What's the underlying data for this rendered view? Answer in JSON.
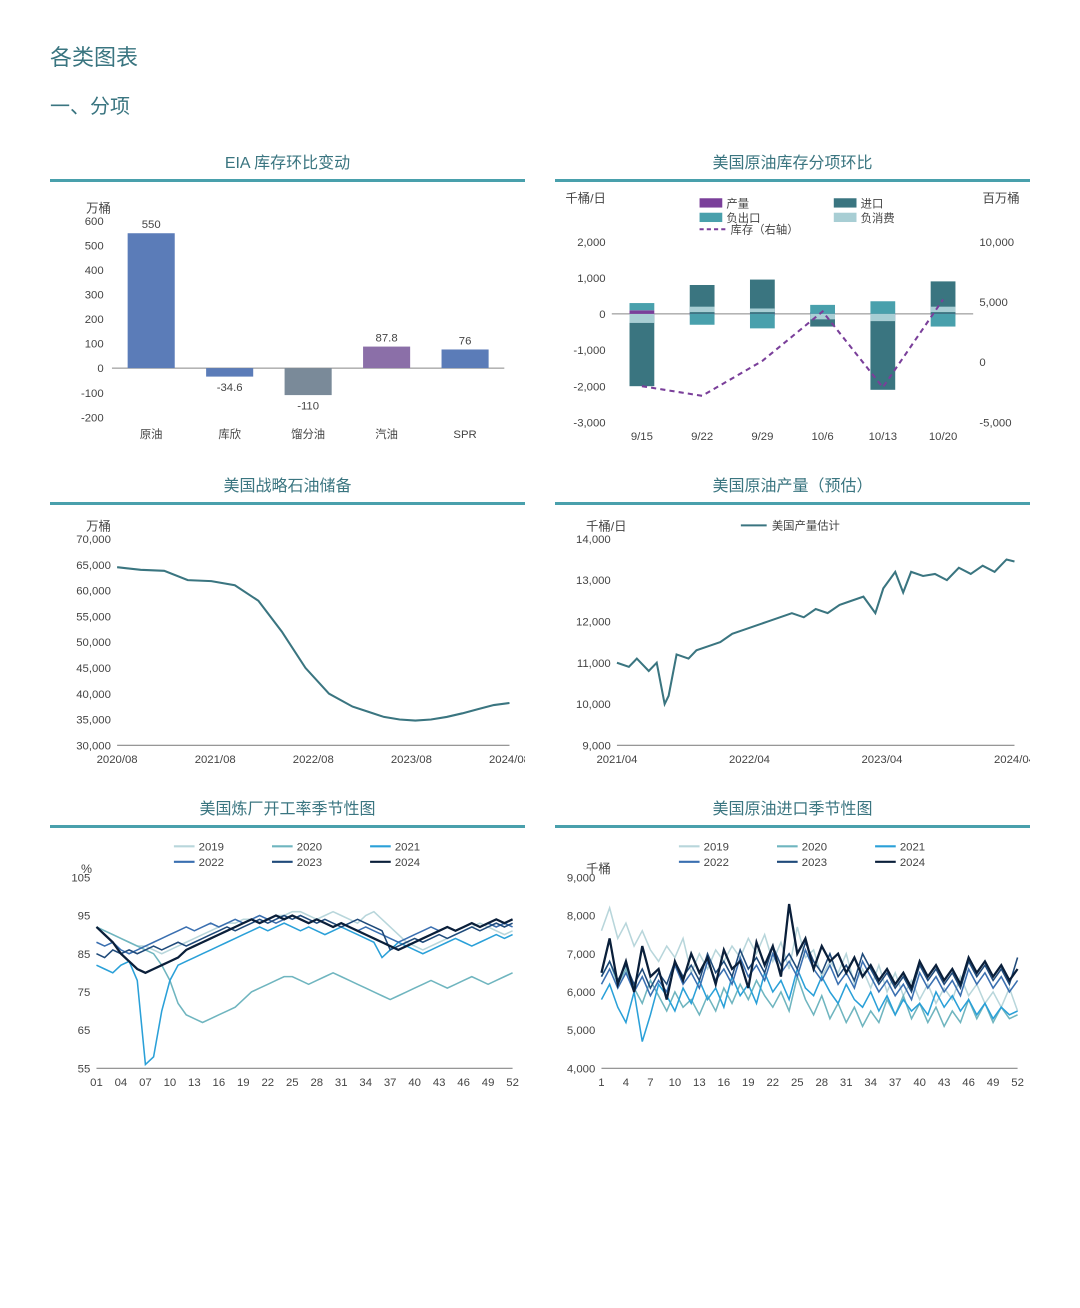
{
  "page": {
    "main_title": "各类图表",
    "section_title": "一、分项"
  },
  "palette": {
    "teal": "#49a0ac",
    "teal_dark": "#3a7580",
    "teal_light": "#8fc6ce",
    "bar_blue": "#5b7cb8",
    "bar_gray": "#7a8a99",
    "bar_purple": "#8b6fa8",
    "purple": "#7a3f9a",
    "grid": "#d0d0d0",
    "axis": "#666666",
    "s2019": "#b8d6db",
    "s2020": "#6fb5bf",
    "s2021": "#2aa0d8",
    "s2022": "#3a6fb0",
    "s2023": "#1f4a7a",
    "s2024": "#0a1f3a",
    "leg_c1": "#7a3f9a",
    "leg_c2": "#3a7580",
    "leg_c3": "#49a0ac",
    "leg_c4": "#a8ced4"
  },
  "chart1": {
    "title": "EIA 库存环比变动",
    "type": "bar",
    "y_unit": "万桶",
    "categories": [
      "原油",
      "库欣",
      "馏分油",
      "汽油",
      "SPR"
    ],
    "values": [
      550,
      -34.6,
      -110,
      87.8,
      76
    ],
    "colors": [
      "#5b7cb8",
      "#5b7cb8",
      "#7a8a99",
      "#8b6fa8",
      "#5b7cb8"
    ],
    "labels": [
      "550",
      "-34.6",
      "-110",
      "87.8",
      "76"
    ],
    "ylim": [
      -200,
      600
    ],
    "ytick": 100
  },
  "chart2": {
    "title": "美国原油库存分项环比",
    "type": "stacked_bar_line",
    "left_unit": "千桶/日",
    "right_unit": "百万桶",
    "legend": [
      "产量",
      "进口",
      "负出口",
      "负消费",
      "库存（右轴）"
    ],
    "x": [
      "9/15",
      "9/22",
      "9/29",
      "10/6",
      "10/13",
      "10/20"
    ],
    "left_ylim": [
      -3000,
      2000
    ],
    "left_tick": 1000,
    "right_ylim": [
      -5000,
      10000
    ],
    "right_tick": 5000,
    "stacks": [
      {
        "p": [
          -100,
          100
        ],
        "i": [
          -2000,
          -100
        ],
        "e": [
          100,
          300
        ],
        "c": [
          -250,
          0
        ]
      },
      {
        "p": [
          -50,
          50
        ],
        "i": [
          0,
          800
        ],
        "e": [
          -300,
          0
        ],
        "c": [
          50,
          200
        ]
      },
      {
        "p": [
          -50,
          50
        ],
        "i": [
          0,
          950
        ],
        "e": [
          -400,
          0
        ],
        "c": [
          50,
          150
        ]
      },
      {
        "p": [
          -50,
          50
        ],
        "i": [
          -350,
          0
        ],
        "e": [
          0,
          250
        ],
        "c": [
          -150,
          0
        ]
      },
      {
        "p": [
          -100,
          0
        ],
        "i": [
          -2100,
          -100
        ],
        "e": [
          0,
          350
        ],
        "c": [
          -200,
          0
        ]
      },
      {
        "p": [
          -50,
          50
        ],
        "i": [
          0,
          900
        ],
        "e": [
          -350,
          0
        ],
        "c": [
          50,
          200
        ]
      }
    ],
    "inventory_line": [
      -2000,
      -2800,
      100,
      4200,
      -2100,
      5200
    ]
  },
  "chart3": {
    "title": "美国战略石油储备",
    "type": "line",
    "y_unit": "万桶",
    "x": [
      "2020/08",
      "2021/08",
      "2022/08",
      "2023/08",
      "2024/08"
    ],
    "ylim": [
      30000,
      70000
    ],
    "ytick": 5000,
    "series": [
      [
        0,
        64500
      ],
      [
        6,
        64000
      ],
      [
        12,
        63800
      ],
      [
        18,
        62000
      ],
      [
        24,
        61800
      ],
      [
        30,
        61000
      ],
      [
        36,
        58000
      ],
      [
        42,
        52000
      ],
      [
        48,
        45000
      ],
      [
        54,
        40000
      ],
      [
        60,
        37500
      ],
      [
        64,
        36500
      ],
      [
        68,
        35500
      ],
      [
        72,
        35000
      ],
      [
        76,
        34800
      ],
      [
        80,
        35000
      ],
      [
        84,
        35500
      ],
      [
        88,
        36200
      ],
      [
        92,
        37000
      ],
      [
        96,
        37800
      ],
      [
        100,
        38200
      ]
    ]
  },
  "chart4": {
    "title": "美国原油产量（预估）",
    "type": "line",
    "y_unit": "千桶/日",
    "legend": "美国产量估计",
    "x": [
      "2021/04",
      "2022/04",
      "2023/04",
      "2024/04"
    ],
    "ylim": [
      9000,
      14000
    ],
    "ytick": 1000,
    "series": [
      [
        0,
        11000
      ],
      [
        3,
        10900
      ],
      [
        5,
        11100
      ],
      [
        8,
        10800
      ],
      [
        10,
        11000
      ],
      [
        12,
        10000
      ],
      [
        13,
        10200
      ],
      [
        15,
        11200
      ],
      [
        18,
        11100
      ],
      [
        20,
        11300
      ],
      [
        23,
        11400
      ],
      [
        26,
        11500
      ],
      [
        29,
        11700
      ],
      [
        32,
        11800
      ],
      [
        35,
        11900
      ],
      [
        38,
        12000
      ],
      [
        41,
        12100
      ],
      [
        44,
        12200
      ],
      [
        47,
        12100
      ],
      [
        50,
        12300
      ],
      [
        53,
        12200
      ],
      [
        56,
        12400
      ],
      [
        59,
        12500
      ],
      [
        62,
        12600
      ],
      [
        65,
        12200
      ],
      [
        67,
        12800
      ],
      [
        70,
        13200
      ],
      [
        72,
        12700
      ],
      [
        74,
        13200
      ],
      [
        77,
        13100
      ],
      [
        80,
        13150
      ],
      [
        83,
        13000
      ],
      [
        86,
        13300
      ],
      [
        89,
        13150
      ],
      [
        92,
        13350
      ],
      [
        95,
        13200
      ],
      [
        98,
        13500
      ],
      [
        100,
        13450
      ]
    ]
  },
  "chart5": {
    "title": "美国炼厂开工率季节性图",
    "type": "seasonal",
    "y_unit": "%",
    "ylim": [
      55,
      105
    ],
    "ytick": 10,
    "x_ticks": [
      "01",
      "04",
      "07",
      "10",
      "13",
      "16",
      "19",
      "22",
      "25",
      "28",
      "31",
      "34",
      "37",
      "40",
      "43",
      "46",
      "49",
      "52"
    ],
    "years": [
      "2019",
      "2020",
      "2021",
      "2022",
      "2023",
      "2024"
    ],
    "colors": [
      "#b8d6db",
      "#6fb5bf",
      "#2aa0d8",
      "#3a6fb0",
      "#1f4a7a",
      "#0a1f3a"
    ],
    "data": {
      "2019": [
        92,
        91,
        90,
        89,
        88,
        87,
        87,
        86,
        85,
        86,
        87,
        88,
        89,
        90,
        91,
        92,
        93,
        93,
        94,
        94,
        93,
        94,
        95,
        95,
        96,
        96,
        95,
        94,
        95,
        96,
        95,
        94,
        93,
        95,
        96,
        94,
        92,
        90,
        88,
        87,
        86,
        87,
        88,
        89,
        90,
        91,
        92,
        93,
        92,
        91,
        90,
        91
      ],
      "2020": [
        92,
        91,
        90,
        89,
        88,
        87,
        86,
        85,
        82,
        78,
        72,
        69,
        68,
        67,
        68,
        69,
        70,
        71,
        73,
        75,
        76,
        77,
        78,
        79,
        79,
        78,
        77,
        78,
        79,
        80,
        79,
        78,
        77,
        76,
        75,
        74,
        73,
        74,
        75,
        76,
        77,
        78,
        77,
        76,
        77,
        78,
        79,
        78,
        77,
        78,
        79,
        80
      ],
      "2021": [
        82,
        81,
        80,
        82,
        83,
        78,
        56,
        58,
        70,
        78,
        82,
        83,
        84,
        85,
        86,
        87,
        88,
        89,
        90,
        91,
        92,
        91,
        92,
        93,
        92,
        91,
        92,
        91,
        90,
        91,
        92,
        91,
        90,
        89,
        88,
        84,
        86,
        88,
        87,
        86,
        85,
        86,
        87,
        88,
        89,
        88,
        87,
        88,
        89,
        90,
        89,
        90
      ],
      "2022": [
        88,
        87,
        88,
        86,
        85,
        86,
        87,
        88,
        89,
        90,
        91,
        92,
        91,
        92,
        93,
        92,
        93,
        94,
        93,
        94,
        95,
        94,
        93,
        94,
        95,
        94,
        93,
        94,
        93,
        92,
        93,
        92,
        91,
        92,
        91,
        90,
        89,
        88,
        89,
        90,
        91,
        92,
        91,
        92,
        91,
        92,
        93,
        92,
        93,
        92,
        93,
        92
      ],
      "2023": [
        85,
        84,
        86,
        85,
        86,
        85,
        86,
        87,
        86,
        87,
        88,
        87,
        88,
        89,
        90,
        91,
        92,
        91,
        92,
        93,
        94,
        93,
        94,
        95,
        94,
        95,
        94,
        93,
        94,
        93,
        92,
        93,
        94,
        93,
        92,
        91,
        86,
        87,
        88,
        89,
        88,
        89,
        90,
        89,
        90,
        91,
        92,
        91,
        92,
        93,
        92,
        93
      ],
      "2024": [
        92,
        90,
        88,
        85,
        83,
        81,
        80,
        81,
        82,
        83,
        84,
        86,
        87,
        88,
        89,
        90,
        91,
        92,
        93,
        94,
        93,
        94,
        95,
        94,
        95,
        94,
        93,
        94,
        93,
        92,
        93,
        92,
        91,
        90,
        89,
        88,
        87,
        86,
        87,
        88,
        89,
        90,
        91,
        92,
        91,
        92,
        93,
        92,
        93,
        94,
        93,
        94
      ]
    }
  },
  "chart6": {
    "title": "美国原油进口季节性图",
    "type": "seasonal",
    "y_unit": "千桶",
    "ylim": [
      4000,
      9000
    ],
    "ytick": 1000,
    "x_ticks": [
      "1",
      "4",
      "7",
      "10",
      "13",
      "16",
      "19",
      "22",
      "25",
      "28",
      "31",
      "34",
      "37",
      "40",
      "43",
      "46",
      "49",
      "52"
    ],
    "years": [
      "2019",
      "2020",
      "2021",
      "2022",
      "2023",
      "2024"
    ],
    "colors": [
      "#b8d6db",
      "#6fb5bf",
      "#2aa0d8",
      "#3a6fb0",
      "#1f4a7a",
      "#0a1f3a"
    ],
    "data": {
      "2019": [
        7600,
        8200,
        7400,
        7800,
        7200,
        7600,
        7100,
        6800,
        7200,
        6900,
        7400,
        6500,
        7000,
        6600,
        7100,
        6800,
        7200,
        6900,
        7400,
        7000,
        7500,
        6800,
        7300,
        6600,
        7700,
        6900,
        7100,
        6400,
        6800,
        6500,
        7000,
        6200,
        6600,
        6100,
        6700,
        6000,
        6500,
        5900,
        6300,
        5800,
        6200,
        5700,
        6100,
        5800,
        6400,
        5900,
        6200,
        5700,
        6000,
        5600,
        6100,
        5500
      ],
      "2020": [
        6400,
        6800,
        6200,
        6600,
        6100,
        5700,
        6300,
        5900,
        5500,
        6000,
        5600,
        5800,
        5400,
        5900,
        5500,
        6100,
        5700,
        6200,
        5800,
        6300,
        5900,
        5600,
        6000,
        5500,
        6400,
        5800,
        5400,
        5900,
        5300,
        5700,
        5200,
        5600,
        5100,
        5500,
        5200,
        5800,
        5400,
        5900,
        5300,
        5700,
        5200,
        5600,
        5100,
        5500,
        5200,
        5800,
        5300,
        5700,
        5200,
        5600,
        5300,
        5400
      ],
      "2021": [
        5800,
        6200,
        5600,
        5200,
        6000,
        4700,
        5400,
        6200,
        5900,
        5500,
        6100,
        5700,
        6300,
        5800,
        6100,
        5600,
        6400,
        5900,
        6200,
        5700,
        6500,
        6000,
        6300,
        5800,
        6600,
        6100,
        5900,
        6400,
        6000,
        5700,
        6200,
        5800,
        5600,
        6000,
        5500,
        5900,
        5400,
        5800,
        5500,
        5700,
        5400,
        6000,
        5600,
        5900,
        5500,
        5800,
        5400,
        5700,
        5300,
        5600,
        5400,
        5500
      ],
      "2022": [
        6200,
        6600,
        6100,
        6500,
        6000,
        6400,
        5900,
        6300,
        6000,
        6700,
        6200,
        6500,
        6100,
        6800,
        6300,
        6600,
        6200,
        6900,
        6400,
        6700,
        6300,
        7000,
        6500,
        6800,
        6400,
        7100,
        6600,
        6300,
        6700,
        6200,
        6500,
        6100,
        6800,
        6400,
        6000,
        6300,
        5900,
        6200,
        5800,
        6500,
        6100,
        6400,
        6000,
        6300,
        5900,
        6600,
        6200,
        6500,
        6100,
        6400,
        6000,
        6300
      ],
      "2023": [
        6400,
        6800,
        6300,
        6700,
        6200,
        6600,
        6100,
        6500,
        6200,
        6800,
        6400,
        6700,
        6300,
        7000,
        6500,
        6800,
        6400,
        7100,
        6600,
        6900,
        6500,
        7200,
        6700,
        7000,
        6600,
        7300,
        6800,
        6500,
        7000,
        6400,
        6700,
        6300,
        7000,
        6600,
        6200,
        6500,
        6100,
        6400,
        6000,
        6700,
        6300,
        6600,
        6200,
        6500,
        6100,
        6800,
        6400,
        6700,
        6300,
        6600,
        6200,
        6900
      ],
      "2024": [
        6500,
        7400,
        6200,
        6800,
        6000,
        7200,
        6400,
        6600,
        5800,
        6800,
        6300,
        7000,
        6500,
        6900,
        6200,
        7100,
        6600,
        6800,
        6100,
        7300,
        6700,
        7200,
        6400,
        8300,
        7000,
        7400,
        6600,
        7200,
        6800,
        7000,
        6500,
        6900,
        6400,
        6700,
        6300,
        6600,
        6200,
        6500,
        6100,
        6800,
        6400,
        6700,
        6300,
        6600,
        6200,
        6900,
        6500,
        6800,
        6400,
        6700,
        6300,
        6600
      ]
    }
  }
}
